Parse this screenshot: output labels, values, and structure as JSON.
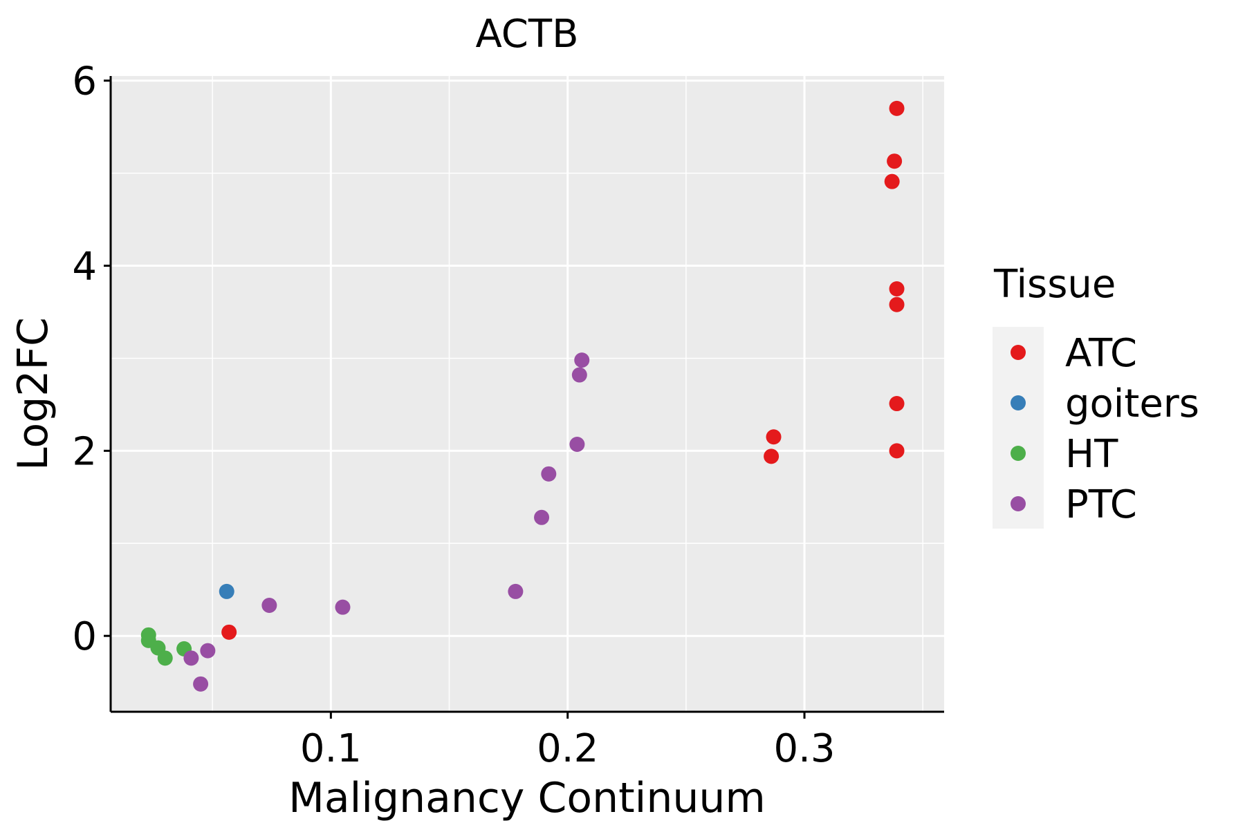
{
  "chart_data": {
    "type": "scatter",
    "title": "ACTB",
    "xlabel": "Malignancy Continuum",
    "ylabel": "Log2FC",
    "xlim": [
      0.007,
      0.359
    ],
    "ylim": [
      -0.82,
      6.05
    ],
    "x_ticks": [
      0.1,
      0.2,
      0.3
    ],
    "x_tick_labels": [
      "0.1",
      "0.2",
      "0.3"
    ],
    "y_ticks": [
      0,
      2,
      4,
      6
    ],
    "y_tick_labels": [
      "0",
      "2",
      "4",
      "6"
    ],
    "x_minor_grid": [
      0.05,
      0.15,
      0.25,
      0.35
    ],
    "y_minor_grid": [
      1,
      3,
      5
    ],
    "grid": true,
    "legend": {
      "title": "Tissue",
      "position": "right",
      "entries": [
        {
          "name": "ATC",
          "color": "#e41a1c"
        },
        {
          "name": "goiters",
          "color": "#377eb8"
        },
        {
          "name": "HT",
          "color": "#4daf4a"
        },
        {
          "name": "PTC",
          "color": "#984ea3"
        }
      ]
    },
    "series": [
      {
        "name": "ATC",
        "color": "#e41a1c",
        "points": [
          {
            "x": 0.339,
            "y": 5.7
          },
          {
            "x": 0.338,
            "y": 5.13
          },
          {
            "x": 0.337,
            "y": 4.91
          },
          {
            "x": 0.339,
            "y": 3.75
          },
          {
            "x": 0.339,
            "y": 3.58
          },
          {
            "x": 0.339,
            "y": 2.51
          },
          {
            "x": 0.339,
            "y": 2.0
          },
          {
            "x": 0.287,
            "y": 2.15
          },
          {
            "x": 0.286,
            "y": 1.94
          },
          {
            "x": 0.057,
            "y": 0.04
          }
        ]
      },
      {
        "name": "goiters",
        "color": "#377eb8",
        "points": [
          {
            "x": 0.056,
            "y": 0.48
          }
        ]
      },
      {
        "name": "HT",
        "color": "#4daf4a",
        "points": [
          {
            "x": 0.023,
            "y": 0.01
          },
          {
            "x": 0.023,
            "y": -0.05
          },
          {
            "x": 0.027,
            "y": -0.13
          },
          {
            "x": 0.03,
            "y": -0.24
          },
          {
            "x": 0.038,
            "y": -0.14
          }
        ]
      },
      {
        "name": "PTC",
        "color": "#984ea3",
        "points": [
          {
            "x": 0.206,
            "y": 2.98
          },
          {
            "x": 0.205,
            "y": 2.82
          },
          {
            "x": 0.204,
            "y": 2.07
          },
          {
            "x": 0.192,
            "y": 1.75
          },
          {
            "x": 0.189,
            "y": 1.28
          },
          {
            "x": 0.178,
            "y": 0.48
          },
          {
            "x": 0.105,
            "y": 0.31
          },
          {
            "x": 0.074,
            "y": 0.33
          },
          {
            "x": 0.048,
            "y": -0.16
          },
          {
            "x": 0.041,
            "y": -0.24
          },
          {
            "x": 0.045,
            "y": -0.52
          }
        ]
      }
    ]
  }
}
